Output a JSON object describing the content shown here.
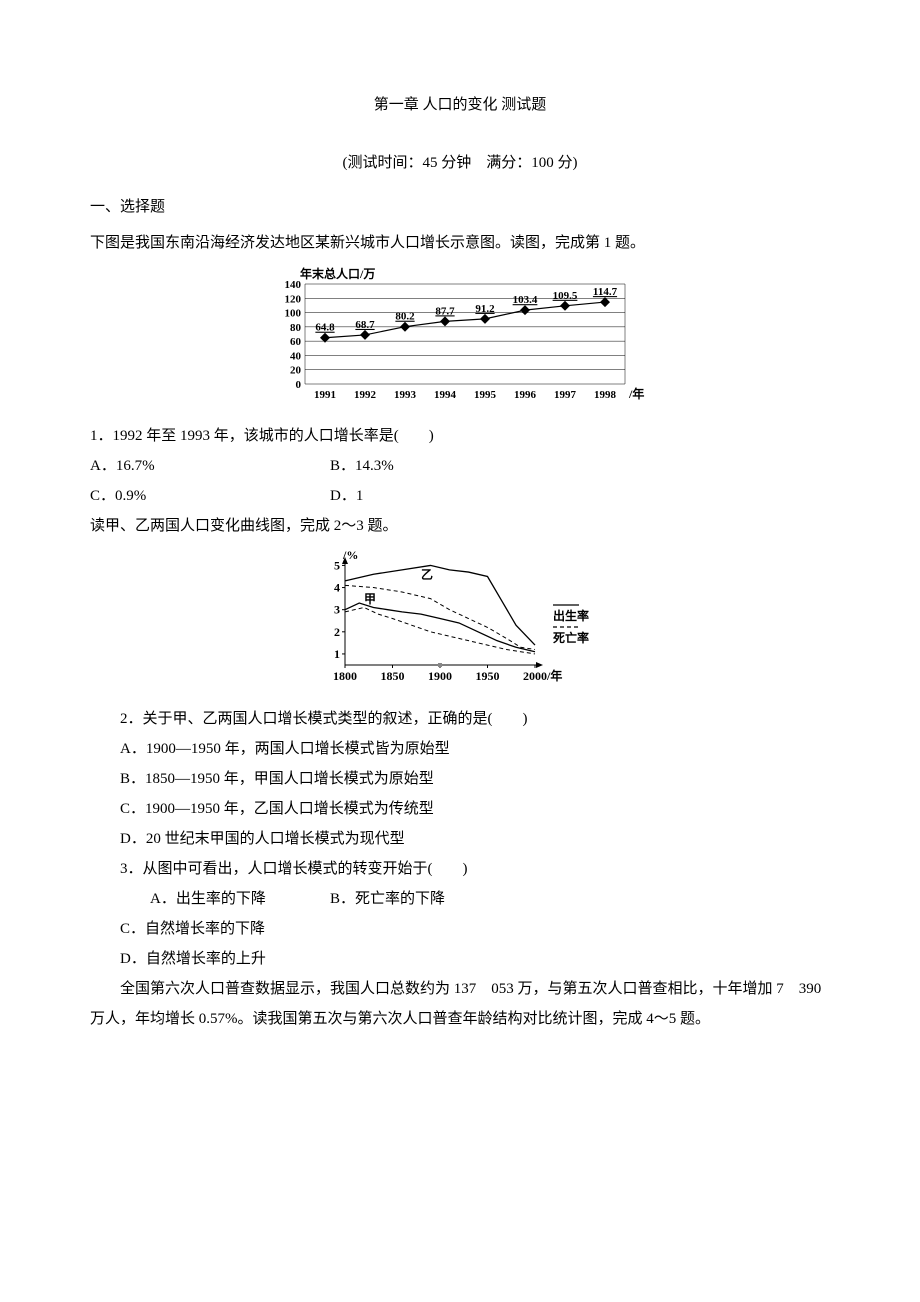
{
  "title": "第一章 人口的变化 测试题",
  "subtitle": "(测试时间：45 分钟　满分：100 分)",
  "section1": "一、选择题",
  "intro1": "下图是我国东南沿海经济发达地区某新兴城市人口增长示意图。读图，完成第 1 题。",
  "chart1": {
    "type": "line",
    "ylabel": "年末总人口/万",
    "xlabel": "/年",
    "years": [
      "1991",
      "1992",
      "1993",
      "1994",
      "1995",
      "1996",
      "1997",
      "1998"
    ],
    "values": [
      64.8,
      68.7,
      80.2,
      87.7,
      91.2,
      103.4,
      109.5,
      114.7
    ],
    "yticks": [
      0,
      20,
      40,
      60,
      80,
      100,
      120,
      140
    ],
    "ylim": [
      0,
      140
    ],
    "line_color": "#000000",
    "marker": "diamond",
    "marker_fill": "#000000",
    "marker_size": 5,
    "line_width": 1.2,
    "grid_color": "#000000",
    "grid_width": 0.5,
    "background": "#ffffff",
    "tick_fontsize": 11,
    "value_fontsize": 11
  },
  "q1": {
    "stem": "1．1992 年至 1993 年，该城市的人口增长率是(　　)",
    "a": "A．16.7%",
    "b": "B．14.3%",
    "c": "C．0.9%",
    "d": "D．1"
  },
  "intro2": "读甲、乙两国人口变化曲线图，完成 2～3 题。",
  "chart2": {
    "type": "line",
    "ylabel": "/%",
    "xlabel": "/年",
    "xticks": [
      "1800",
      "1850",
      "1900",
      "1950",
      "2000"
    ],
    "yticks": [
      1,
      2,
      3,
      4,
      5
    ],
    "xlim": [
      1800,
      2000
    ],
    "ylim": [
      0.5,
      5.2
    ],
    "series": [
      {
        "name": "甲-出生率",
        "label": "甲",
        "label_pos": [
          1820,
          3.3
        ],
        "style": "solid",
        "color": "#000000",
        "width": 1.3,
        "points": [
          [
            1800,
            3.0
          ],
          [
            1815,
            3.3
          ],
          [
            1830,
            3.1
          ],
          [
            1845,
            3.0
          ],
          [
            1860,
            2.9
          ],
          [
            1880,
            2.8
          ],
          [
            1900,
            2.6
          ],
          [
            1920,
            2.4
          ],
          [
            1940,
            2.0
          ],
          [
            1960,
            1.6
          ],
          [
            1980,
            1.3
          ],
          [
            2000,
            1.1
          ]
        ]
      },
      {
        "name": "甲-死亡率",
        "style": "dashed",
        "color": "#000000",
        "width": 1.0,
        "points": [
          [
            1800,
            2.9
          ],
          [
            1820,
            3.1
          ],
          [
            1835,
            2.8
          ],
          [
            1850,
            2.6
          ],
          [
            1870,
            2.3
          ],
          [
            1890,
            2.0
          ],
          [
            1910,
            1.8
          ],
          [
            1930,
            1.6
          ],
          [
            1950,
            1.4
          ],
          [
            1970,
            1.2
          ],
          [
            2000,
            1.0
          ]
        ]
      },
      {
        "name": "乙-出生率",
        "label": "乙",
        "label_pos": [
          1880,
          4.4
        ],
        "style": "solid",
        "color": "#000000",
        "width": 1.3,
        "points": [
          [
            1800,
            4.3
          ],
          [
            1830,
            4.6
          ],
          [
            1860,
            4.8
          ],
          [
            1890,
            5.0
          ],
          [
            1910,
            4.8
          ],
          [
            1930,
            4.7
          ],
          [
            1950,
            4.5
          ],
          [
            1965,
            3.4
          ],
          [
            1980,
            2.3
          ],
          [
            2000,
            1.4
          ]
        ]
      },
      {
        "name": "乙-死亡率",
        "style": "dashed",
        "color": "#000000",
        "width": 1.0,
        "points": [
          [
            1800,
            4.1
          ],
          [
            1830,
            4.0
          ],
          [
            1860,
            3.8
          ],
          [
            1890,
            3.5
          ],
          [
            1910,
            3.0
          ],
          [
            1930,
            2.6
          ],
          [
            1950,
            2.2
          ],
          [
            1970,
            1.7
          ],
          [
            1985,
            1.3
          ],
          [
            2000,
            1.2
          ]
        ]
      }
    ],
    "legend": {
      "items": [
        {
          "label": "出生率",
          "style": "solid"
        },
        {
          "label": "死亡率",
          "style": "dashed"
        }
      ],
      "fontsize": 12
    },
    "background": "#ffffff",
    "axis_color": "#000000",
    "tick_fontsize": 11
  },
  "q2": {
    "stem": "2．关于甲、乙两国人口增长模式类型的叙述，正确的是(　　)",
    "a": "A．1900—1950 年，两国人口增长模式皆为原始型",
    "b": "B．1850—1950 年，甲国人口增长模式为原始型",
    "c": "C．1900—1950 年，乙国人口增长模式为传统型",
    "d": "D．20 世纪末甲国的人口增长模式为现代型"
  },
  "q3": {
    "stem": "3．从图中可看出，人口增长模式的转变开始于(　　)",
    "a": "A．出生率的下降",
    "b": "B．死亡率的下降",
    "c": "C．自然增长率的下降",
    "d": "D．自然增长率的上升"
  },
  "intro3": "全国第六次人口普查数据显示，我国人口总数约为 137　053 万，与第五次人口普查相比，十年增加 7　390 万人，年均增长 0.57%。读我国第五次与第六次人口普查年龄结构对比统计图，完成 4～5 题。"
}
